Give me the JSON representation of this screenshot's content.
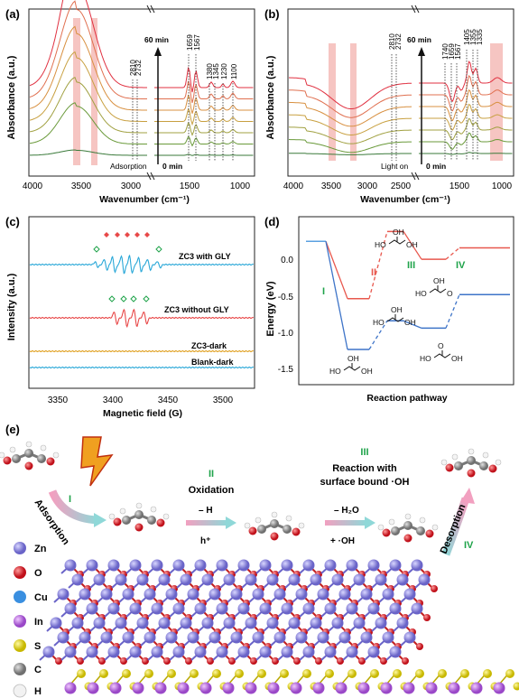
{
  "panel_a": {
    "label": "(a)",
    "ylabel": "Absorbance (a.u.)",
    "xlabel": "Wavenumber (cm⁻¹)",
    "time_top": "60 min",
    "time_bottom": "0 min",
    "condition": "Adsorption",
    "peaks_left": [
      "2810",
      "2732"
    ],
    "peaks_right": [
      "1659",
      "1567",
      "1380",
      "1345",
      "1230",
      "1100"
    ],
    "ticks": [
      "4000",
      "3500",
      "3000",
      "1500",
      "1000"
    ]
  },
  "panel_b": {
    "label": "(b)",
    "ylabel": "Absorbance (a.u.)",
    "xlabel": "Wavenumber (cm⁻¹)",
    "time_top": "60 min",
    "time_bottom": "0 min",
    "condition": "Light on",
    "peaks_left": [
      "2810",
      "2732"
    ],
    "peaks_right": [
      "1740",
      "1659",
      "1567",
      "1405",
      "1355",
      "1335"
    ],
    "ticks": [
      "4000",
      "3500",
      "3000",
      "2500",
      "1500",
      "1000"
    ]
  },
  "panel_c": {
    "label": "(c)",
    "ylabel": "Intensity (a.u.)",
    "xlabel": "Magnetic field (G)",
    "ticks": [
      "3350",
      "3400",
      "3450",
      "3500"
    ],
    "traces": [
      "ZC3 with GLY",
      "ZC3 without GLY",
      "ZC3-dark",
      "Blank-dark"
    ]
  },
  "panel_d": {
    "label": "(d)",
    "ylabel": "Energy (eV)",
    "xlabel": "Reaction pathway",
    "yticks": [
      "0.0",
      "-0.5",
      "-1.0",
      "-1.5"
    ],
    "steps": [
      "I",
      "II",
      "III",
      "IV"
    ]
  },
  "panel_e": {
    "label": "(e)",
    "step1": "I",
    "step1_text": "Adsorption",
    "step2": "II",
    "step2_text": "Oxidation",
    "step2_minus": "– H",
    "step2_plus": "h⁺",
    "step3": "III",
    "step3_text1": "Reaction with",
    "step3_text2": "surface bound ·OH",
    "step3_minus": "– H₂O",
    "step3_plus": "+ ·OH",
    "step4": "IV",
    "step4_text": "Desorption",
    "legend": [
      {
        "symbol": "Zn",
        "color": "#8a86d8"
      },
      {
        "symbol": "O",
        "color": "#e8202a"
      },
      {
        "symbol": "Cu",
        "color": "#3a8fe0"
      },
      {
        "symbol": "In",
        "color": "#b86ee0"
      },
      {
        "symbol": "S",
        "color": "#e3d61a"
      },
      {
        "symbol": "C",
        "color": "#8a8a8a"
      },
      {
        "symbol": "H",
        "color": "#e8e8e8"
      }
    ]
  },
  "colors": {
    "green_label": "#1fa34a",
    "red_step": "#e8584e",
    "blue_step": "#3e74c8"
  },
  "chart_data": [
    {
      "type": "line",
      "panel": "a",
      "xlabel": "Wavenumber (cm⁻¹)",
      "ylabel": "Absorbance (a.u.)",
      "xlim": [
        4000,
        1000
      ],
      "axis_break": [
        2700,
        1800
      ],
      "series_count": 7
    },
    {
      "type": "line",
      "panel": "b",
      "xlabel": "Wavenumber (cm⁻¹)",
      "ylabel": "Absorbance (a.u.)",
      "xlim": [
        4000,
        1000
      ],
      "axis_break": [
        2650,
        1800
      ],
      "series_count": 7
    },
    {
      "type": "line",
      "panel": "c",
      "xlabel": "Magnetic field (G)",
      "ylabel": "Intensity (a.u.)",
      "xlim": [
        3320,
        3525
      ],
      "series": [
        {
          "name": "ZC3 with GLY"
        },
        {
          "name": "ZC3 without GLY"
        },
        {
          "name": "ZC3-dark"
        },
        {
          "name": "Blank-dark"
        }
      ]
    },
    {
      "type": "line",
      "panel": "d",
      "xlabel": "Reaction pathway",
      "ylabel": "Energy (eV)",
      "ylim": [
        -1.75,
        0.3
      ],
      "series": [
        {
          "values": [
            0.0,
            -0.7,
            0.12,
            -0.22,
            -0.08
          ]
        },
        {
          "values": [
            0.0,
            -1.32,
            -0.97,
            -1.06,
            -0.65
          ]
        }
      ]
    }
  ]
}
